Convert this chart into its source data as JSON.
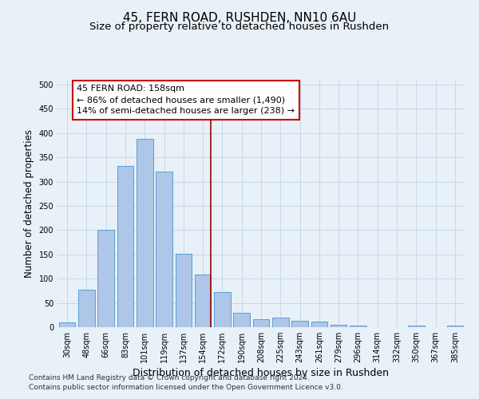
{
  "title_line1": "45, FERN ROAD, RUSHDEN, NN10 6AU",
  "title_line2": "Size of property relative to detached houses in Rushden",
  "xlabel": "Distribution of detached houses by size in Rushden",
  "ylabel": "Number of detached properties",
  "categories": [
    "30sqm",
    "48sqm",
    "66sqm",
    "83sqm",
    "101sqm",
    "119sqm",
    "137sqm",
    "154sqm",
    "172sqm",
    "190sqm",
    "208sqm",
    "225sqm",
    "243sqm",
    "261sqm",
    "279sqm",
    "296sqm",
    "314sqm",
    "332sqm",
    "350sqm",
    "367sqm",
    "385sqm"
  ],
  "values": [
    10,
    78,
    200,
    333,
    388,
    320,
    151,
    108,
    73,
    30,
    17,
    20,
    13,
    12,
    5,
    4,
    0,
    0,
    4,
    0,
    4
  ],
  "bar_color": "#aec6e8",
  "bar_edge_color": "#5a9fd4",
  "vline_x_index": 7,
  "vline_color": "#990000",
  "annotation_line1": "45 FERN ROAD: 158sqm",
  "annotation_line2": "← 86% of detached houses are smaller (1,490)",
  "annotation_line3": "14% of semi-detached houses are larger (238) →",
  "annotation_box_color": "#ffffff",
  "annotation_box_edge": "#cc0000",
  "ylim": [
    0,
    510
  ],
  "yticks": [
    0,
    50,
    100,
    150,
    200,
    250,
    300,
    350,
    400,
    450,
    500
  ],
  "grid_color": "#c8d8e8",
  "background_color": "#e8f0f8",
  "footnote1": "Contains HM Land Registry data © Crown copyright and database right 2024.",
  "footnote2": "Contains public sector information licensed under the Open Government Licence v3.0.",
  "title_fontsize": 11,
  "subtitle_fontsize": 9.5,
  "xlabel_fontsize": 9,
  "ylabel_fontsize": 8.5,
  "tick_fontsize": 7,
  "annotation_fontsize": 8,
  "footnote_fontsize": 6.5
}
